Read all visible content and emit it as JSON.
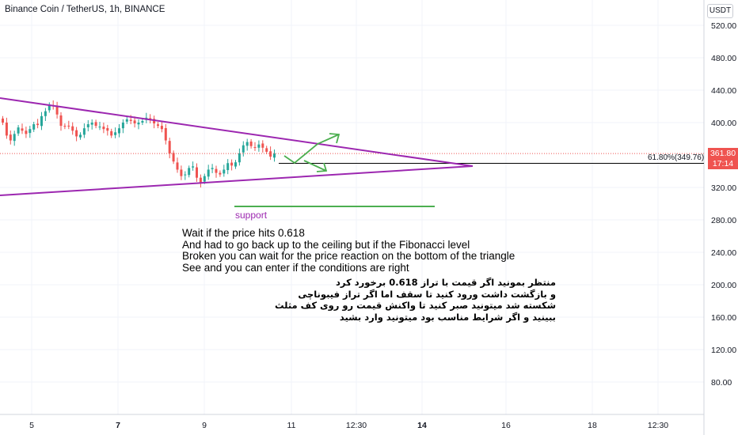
{
  "header": {
    "symbol_title": "Binance Coin / TetherUS, 1h, BINANCE",
    "currency_button": "USDT"
  },
  "price_badge": {
    "price": "361.80",
    "countdown": "17:14"
  },
  "fib_label": "61.80%(349.76)",
  "support_label": "support",
  "notes_en": [
    "Wait if the price hits 0.618",
    "And had to go back up to the ceiling but if the Fibonacci level",
    "Broken you can wait for the price reaction on the bottom of the triangle",
    "See and you can enter if the conditions are right"
  ],
  "notes_fa": [
    "منتظر بمونید اگر قیمت با تراز 0.618 برخورد کرد",
    "و بازگشت داشت ورود کنید تا سقف اما اگر تراز فیبوناچی",
    "شکسته شد میتونید صبر کنید تا واکنش قیمت رو روی کف مثلث",
    "ببینید و اگر شرایط مناسب بود میتونید وارد بشید"
  ],
  "colors": {
    "triangle": "#9c27b0",
    "support": "#4caf50",
    "arrows": "#4caf50",
    "candle_up": "#26a69a",
    "candle_down": "#ef5350",
    "price_line": "#ef5350",
    "fib_line": "#000000"
  },
  "chart_data": {
    "type": "candlestick",
    "title": "Binance Coin / TetherUS, 1h, BINANCE",
    "y_axis": {
      "ticks": [
        "520.00",
        "480.00",
        "440.00",
        "400.00",
        "320.00",
        "280.00",
        "240.00",
        "200.00",
        "160.00",
        "120.00",
        "80.00"
      ],
      "range": [
        58,
        540
      ]
    },
    "x_axis": {
      "ticks": [
        "5",
        "7",
        "9",
        "11",
        "12:30",
        "14",
        "16",
        "18",
        "12:30"
      ],
      "bold_ticks": [
        "7",
        "14"
      ]
    },
    "last_price": 361.8,
    "fibonacci_level": {
      "label": "61.80%",
      "value": 349.76
    },
    "closes": [
      400,
      384,
      378,
      386,
      394,
      390,
      386,
      392,
      398,
      397,
      408,
      414,
      422,
      420,
      410,
      396,
      395,
      396,
      390,
      383,
      385,
      393,
      398,
      400,
      396,
      395,
      392,
      390,
      384,
      388,
      393,
      400,
      404,
      402,
      399,
      400,
      402,
      406,
      404,
      399,
      396,
      392,
      378,
      362,
      352,
      342,
      334,
      336,
      344,
      346,
      332,
      326,
      334,
      342,
      344,
      338,
      336,
      342,
      350,
      347,
      351,
      362,
      372,
      376,
      371,
      369,
      373,
      369,
      364,
      358,
      361.8
    ]
  }
}
